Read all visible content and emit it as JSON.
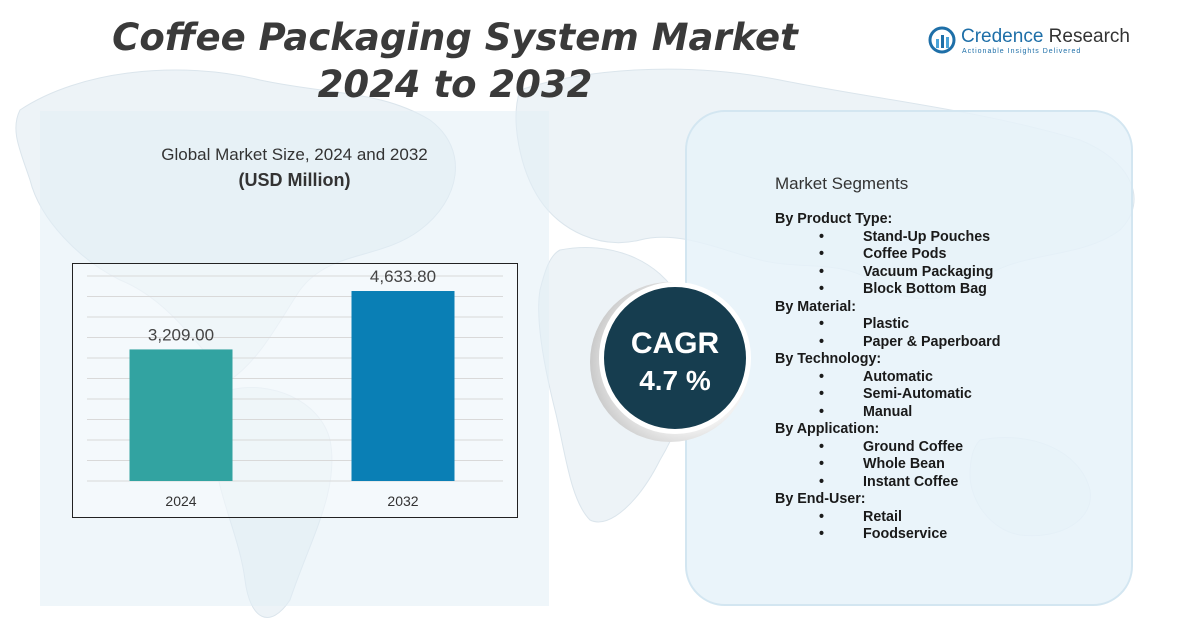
{
  "title": {
    "line1": "Coffee Packaging System Market",
    "line2": "2024 to 2032"
  },
  "logo": {
    "brand_first": "Credence",
    "brand_second": " Research",
    "tagline": "Actionable Insights Delivered",
    "icon": "credence-logo-icon",
    "color": "#1e6fa8"
  },
  "chart_data": {
    "type": "bar",
    "title": "Global Market Size, 2024 and 2032",
    "unit": "(USD Million)",
    "categories": [
      "2024",
      "2032"
    ],
    "values": [
      3209.0,
      4633.8
    ],
    "value_labels": [
      "3,209.00",
      "4,633.80"
    ],
    "colors": [
      "#32a3a1",
      "#0a7fb5"
    ],
    "ylim": [
      0,
      5000
    ],
    "grid": true,
    "legend": "none"
  },
  "cagr": {
    "label": "CAGR",
    "value": "4.7 %"
  },
  "segments": {
    "title": "Market Segments",
    "groups": [
      {
        "name": "By Product Type:",
        "items": [
          "Stand-Up Pouches",
          "Coffee Pods",
          "Vacuum Packaging",
          "Block Bottom Bag"
        ]
      },
      {
        "name": "By Material:",
        "items": [
          "Plastic",
          "Paper & Paperboard"
        ]
      },
      {
        "name": "By Technology:",
        "items": [
          "Automatic",
          "Semi-Automatic",
          "Manual"
        ]
      },
      {
        "name": "By Application:",
        "items": [
          "Ground Coffee",
          "Whole Bean",
          "Instant Coffee"
        ]
      },
      {
        "name": "By End-User:",
        "items": [
          "Retail",
          "Foodservice"
        ]
      }
    ],
    "bullet": "•"
  }
}
